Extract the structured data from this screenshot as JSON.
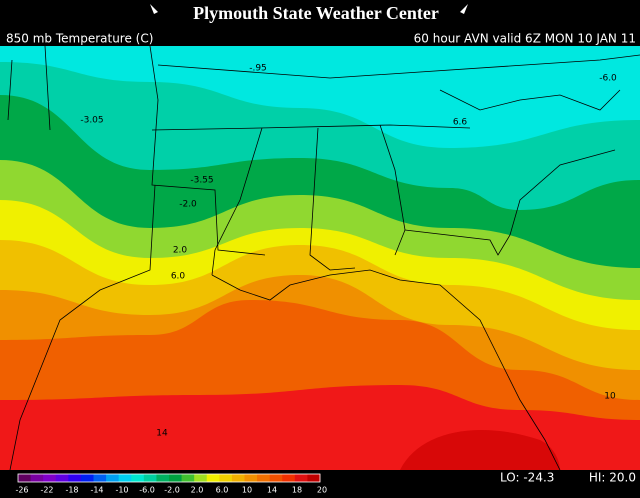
{
  "header": {
    "title": "Plymouth State Weather Center",
    "field": "850 mb Temperature (C)",
    "valid": "60 hour AVN valid 6Z MON 10 JAN 11"
  },
  "map": {
    "labels": [
      "-.95",
      "-3.05",
      "-3.55",
      "-2.0",
      "2.0",
      "6.0",
      "14",
      "-6.0",
      "6.6",
      "10"
    ]
  },
  "colorbar": {
    "labels": [
      "-26",
      "-22",
      "-18",
      "-14",
      "-10",
      "-6.0",
      "-2.0",
      "2.0",
      "6.0",
      "10",
      "14",
      "18",
      "20"
    ],
    "low": "LO: -24.3",
    "high": "HI: 20.0"
  }
}
